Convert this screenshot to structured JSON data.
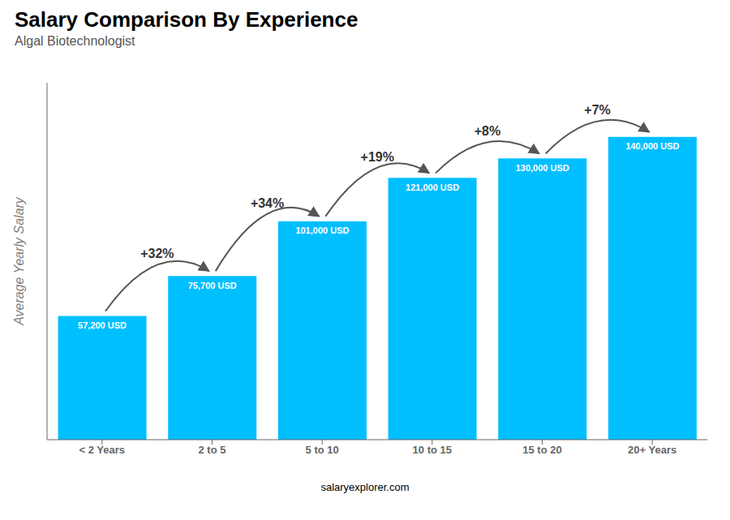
{
  "chart_data": {
    "type": "bar",
    "title": "Salary Comparison By Experience",
    "subtitle": "Algal Biotechnologist",
    "ylabel": "Average Yearly Salary",
    "categories": [
      "< 2 Years",
      "2 to 5",
      "5 to 10",
      "10 to 15",
      "15 to 20",
      "20+ Years"
    ],
    "values": [
      57200,
      75700,
      101000,
      121000,
      130000,
      140000
    ],
    "value_labels": [
      "57,200 USD",
      "75,700 USD",
      "101,000 USD",
      "121,000 USD",
      "130,000 USD",
      "140,000 USD"
    ],
    "data_labels": true,
    "color": "#00BFFF",
    "ylim": [
      0,
      165000
    ],
    "tick_labels": "x",
    "grid": false,
    "annotations": [
      {
        "text": "+32%",
        "from": "< 2 Years",
        "to": "2 to 5"
      },
      {
        "text": "+34%",
        "from": "2 to 5",
        "to": "5 to 10"
      },
      {
        "text": "+19%",
        "from": "5 to 10",
        "to": "10 to 15"
      },
      {
        "text": "+8%",
        "from": "10 to 15",
        "to": "15 to 20"
      },
      {
        "text": "+7%",
        "from": "15 to 20",
        "to": "20+ Years"
      },
      {
        "text": "salaryexplorer.com"
      }
    ]
  }
}
